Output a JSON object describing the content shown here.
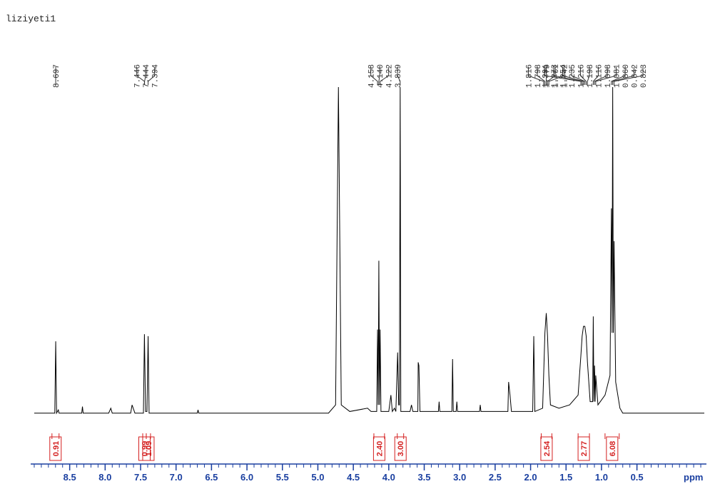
{
  "chart_data": {
    "type": "line",
    "title": "liziyeti1",
    "x_label": "ppm",
    "color": "#000000",
    "axis_color": "#1a3fa0",
    "integral_color": "#d42020",
    "xlim": [
      9.05,
      -0.48
    ],
    "ylim": [
      0,
      100
    ],
    "xticks": [
      8.5,
      {
        "value": 8,
        "label": "8.0"
      },
      7.5,
      {
        "value": 7,
        "label": "7.0"
      },
      6.5,
      {
        "value": 6,
        "label": "6.0"
      },
      5.5,
      {
        "value": 5,
        "label": "5.0"
      },
      4.5,
      {
        "value": 4,
        "label": "4.0"
      },
      3.5,
      {
        "value": 3,
        "label": "3.0"
      },
      2.5,
      {
        "value": 2,
        "label": "2.0"
      },
      1.5,
      {
        "value": 1,
        "label": "1.0"
      },
      0.5
    ],
    "xminorticks": [
      9,
      8.9,
      8.8,
      8.7,
      8.6,
      8.5,
      8.4,
      8.3,
      8.2,
      8.1,
      8,
      7.9,
      7.8,
      7.7,
      7.6,
      7.5,
      7.4,
      7.3,
      7.2,
      7.1,
      7,
      6.9,
      6.8,
      6.7,
      6.6,
      6.5,
      6.4,
      6.3,
      6.2,
      6.1,
      6,
      5.9,
      5.8,
      5.7,
      5.6,
      5.5,
      5.4,
      5.3,
      5.2,
      5.1,
      5,
      4.9,
      4.8,
      4.7,
      4.6,
      4.5,
      4.4,
      4.3,
      4.2,
      4.1,
      4,
      3.9,
      3.8,
      3.7,
      3.6,
      3.5,
      3.4,
      3.3,
      3.2,
      3.1,
      3,
      2.9,
      2.8,
      2.7,
      2.6,
      2.5,
      2.4,
      2.3,
      2.2,
      2.1,
      2,
      1.9,
      1.8,
      1.7,
      1.6,
      1.5,
      1.4,
      1.3,
      1.2,
      1.1,
      1,
      0.9,
      0.8,
      0.7,
      0.6,
      0.5,
      0.4,
      0.3,
      0.2,
      0.1,
      0,
      -0.1,
      -0.2,
      -0.3,
      -0.4
    ],
    "x": [
      9.0,
      8.71,
      8.697,
      8.685,
      8.66,
      8.65,
      8.33,
      8.32,
      8.31,
      7.95,
      7.92,
      7.9,
      7.64,
      7.62,
      7.58,
      7.46,
      7.446,
      7.43,
      7.41,
      7.394,
      7.38,
      6.7,
      6.69,
      6.68,
      4.85,
      4.75,
      4.71,
      4.67,
      4.55,
      4.3,
      4.25,
      4.17,
      4.158,
      4.149,
      4.14,
      4.131,
      4.122,
      4.11,
      4.0,
      3.97,
      3.95,
      3.92,
      3.9,
      3.875,
      3.86,
      3.85,
      3.839,
      3.83,
      3.7,
      3.68,
      3.66,
      3.59,
      3.585,
      3.575,
      3.56,
      3.3,
      3.29,
      3.28,
      3.11,
      3.1,
      3.09,
      3.05,
      3.04,
      3.03,
      2.72,
      2.71,
      2.7,
      2.32,
      2.31,
      2.29,
      2.27,
      1.97,
      1.955,
      1.94,
      1.83,
      1.816,
      1.798,
      1.779,
      1.761,
      1.742,
      1.72,
      1.6,
      1.45,
      1.33,
      1.291,
      1.273,
      1.254,
      1.235,
      1.216,
      1.198,
      1.16,
      1.125,
      1.116,
      1.107,
      1.098,
      1.089,
      1.081,
      1.05,
      0.95,
      0.88,
      0.86,
      0.851,
      0.842,
      0.833,
      0.823,
      0.8,
      0.74,
      0.7,
      -0.45
    ],
    "values": [
      0.5,
      0.5,
      22.4,
      0.5,
      1.5,
      0.5,
      0.5,
      2.5,
      0.5,
      0.5,
      2,
      0.5,
      0.5,
      3,
      0.5,
      0.5,
      24.6,
      1,
      1,
      24,
      0.5,
      0.5,
      1.5,
      0.5,
      0.5,
      3,
      100,
      3,
      1,
      2,
      1,
      1,
      26,
      3,
      47,
      3,
      26,
      1,
      1,
      6,
      1,
      2,
      1,
      19,
      3,
      3,
      100,
      1,
      1,
      3,
      1,
      1,
      16,
      15,
      1,
      1,
      4,
      1,
      1,
      17,
      1,
      1,
      4,
      1,
      1,
      3,
      1,
      1,
      10,
      6,
      1,
      1,
      24,
      1,
      2,
      12,
      25,
      31,
      24,
      12,
      3,
      2,
      3,
      6,
      18,
      24,
      27,
      27,
      24,
      16,
      4,
      4,
      30,
      4,
      15,
      4,
      12,
      3,
      6,
      12,
      63,
      25,
      100,
      25,
      53,
      10,
      2,
      0.5,
      0.5
    ],
    "peak_labels": [
      8.697,
      7.446,
      7.444,
      7.394,
      4.158,
      {
        "value": 4.14,
        "label": "4.140"
      },
      4.122,
      3.839,
      1.816,
      1.798,
      1.779,
      1.761,
      1.742,
      1.291,
      1.273,
      1.254,
      1.235,
      1.216,
      1.198,
      1.116,
      1.098,
      1.081,
      {
        "value": 0.86,
        "label": "0.860"
      },
      0.842,
      0.823
    ],
    "integrals": [
      {
        "value": 0.91,
        "from": 8.75,
        "to": 8.65
      },
      {
        "value": 0.99,
        "from": 7.47,
        "to": 7.42
      },
      {
        "value": 1.09,
        "from": 7.42,
        "to": 7.36
      },
      {
        "value": 2.4,
        "label": "2.40",
        "from": 4.21,
        "to": 4.06
      },
      {
        "value": 3,
        "label": "3.00",
        "from": 3.88,
        "to": 3.79
      },
      {
        "value": 2.54,
        "from": 1.85,
        "to": 1.7
      },
      {
        "value": 2.77,
        "from": 1.33,
        "to": 1.17
      },
      {
        "value": 6.08,
        "from": 0.95,
        "to": 0.75
      }
    ]
  }
}
